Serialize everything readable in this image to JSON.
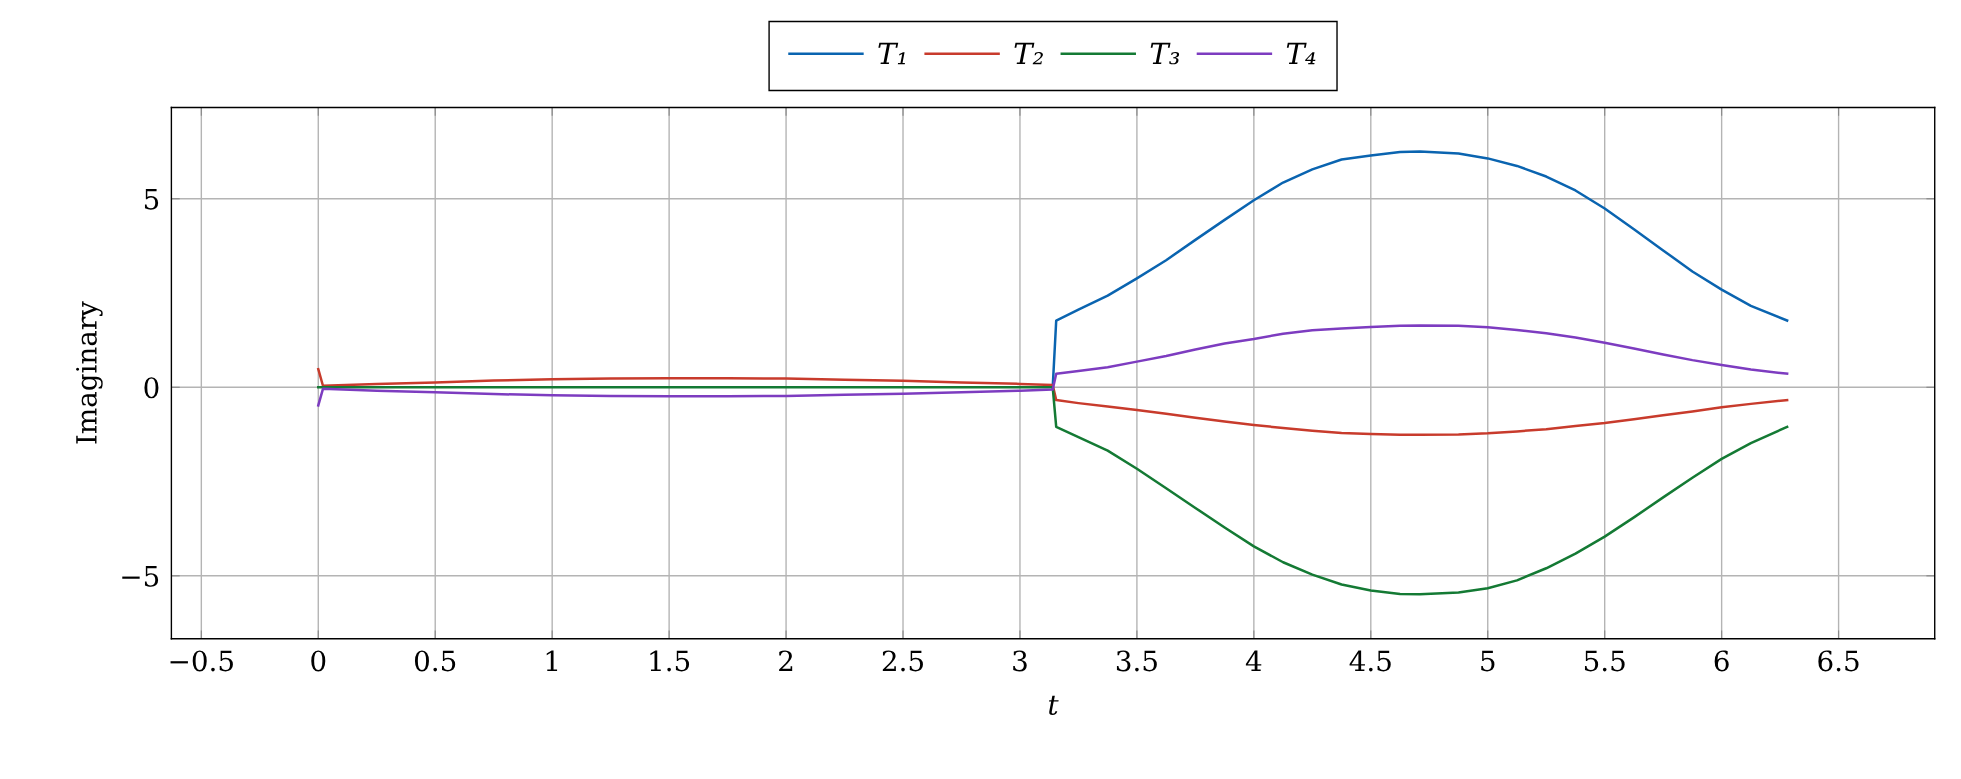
{
  "chart_data": {
    "type": "line",
    "xlabel": "t",
    "ylabel": "Imaginary",
    "xlim": [
      -0.628,
      6.911
    ],
    "ylim": [
      -6.67,
      7.42
    ],
    "xticks": [
      {
        "value": -0.5,
        "label": "−0.5"
      },
      0,
      0.5,
      1,
      1.5,
      2,
      2.5,
      3,
      3.5,
      4,
      4.5,
      5,
      5.5,
      6,
      6.5
    ],
    "yticks": [
      {
        "value": -5,
        "label": "−5"
      },
      0,
      5
    ],
    "grid": true,
    "legend": "top",
    "series": [
      {
        "name": "T₁",
        "color": "#0a64b0",
        "x": [
          3.14,
          3.155,
          3.25,
          3.375,
          3.5,
          3.625,
          3.75,
          3.875,
          4,
          4.125,
          4.25,
          4.375,
          4.5,
          4.625,
          4.71,
          4.875,
          5,
          5.125,
          5.25,
          5.375,
          5.5,
          5.625,
          5.75,
          5.875,
          6,
          6.125,
          6.28
        ],
        "values": [
          0,
          1.77,
          2.06,
          2.43,
          2.89,
          3.37,
          3.91,
          4.44,
          4.96,
          5.43,
          5.78,
          6.04,
          6.15,
          6.24,
          6.25,
          6.2,
          6.07,
          5.87,
          5.59,
          5.22,
          4.74,
          4.19,
          3.63,
          3.07,
          2.59,
          2.16,
          1.77
        ]
      },
      {
        "name": "T₂",
        "color": "#c83b2c",
        "x": [
          0,
          0.02,
          0.25,
          0.5,
          0.75,
          1,
          1.25,
          1.5,
          1.75,
          2,
          2.25,
          2.5,
          2.75,
          3,
          3.14,
          3.155,
          3.25,
          3.375,
          3.5,
          3.625,
          3.75,
          3.875,
          4,
          4.125,
          4.25,
          4.375,
          4.5,
          4.625,
          4.71,
          4.875,
          5,
          5.125,
          5.25,
          5.375,
          5.5,
          5.625,
          5.75,
          5.875,
          6,
          6.125,
          6.28
        ],
        "values": [
          0.48,
          0.04,
          0.09,
          0.13,
          0.18,
          0.21,
          0.23,
          0.24,
          0.24,
          0.23,
          0.2,
          0.17,
          0.13,
          0.09,
          0.06,
          -0.34,
          -0.42,
          -0.51,
          -0.6,
          -0.7,
          -0.81,
          -0.91,
          -1,
          -1.08,
          -1.15,
          -1.21,
          -1.24,
          -1.26,
          -1.26,
          -1.25,
          -1.22,
          -1.17,
          -1.11,
          -1.03,
          -0.95,
          -0.85,
          -0.74,
          -0.64,
          -0.53,
          -0.44,
          -0.34
        ]
      },
      {
        "name": "T₃",
        "color": "#147a34",
        "x": [
          0,
          0.02,
          0.25,
          0.5,
          0.75,
          1,
          1.25,
          1.5,
          1.75,
          2,
          2.25,
          2.5,
          2.75,
          3,
          3.14,
          3.155,
          3.25,
          3.375,
          3.5,
          3.625,
          3.75,
          3.875,
          4,
          4.125,
          4.25,
          4.375,
          4.5,
          4.625,
          4.71,
          4.875,
          5,
          5.125,
          5.25,
          5.375,
          5.5,
          5.625,
          5.75,
          5.875,
          6,
          6.125,
          6.28
        ],
        "values": [
          0,
          0,
          0,
          0,
          0,
          0,
          0,
          0,
          0,
          0,
          0,
          0,
          0,
          0,
          0,
          -1.05,
          -1.32,
          -1.68,
          -2.16,
          -2.68,
          -3.2,
          -3.72,
          -4.22,
          -4.64,
          -4.97,
          -5.23,
          -5.39,
          -5.48,
          -5.49,
          -5.44,
          -5.33,
          -5.12,
          -4.8,
          -4.41,
          -3.96,
          -3.45,
          -2.92,
          -2.4,
          -1.9,
          -1.48,
          -1.05
        ]
      },
      {
        "name": "T₄",
        "color": "#7d3cc0",
        "x": [
          0,
          0.02,
          0.25,
          0.5,
          0.75,
          1,
          1.25,
          1.5,
          1.75,
          2,
          2.25,
          2.5,
          2.75,
          3,
          3.14,
          3.155,
          3.25,
          3.375,
          3.5,
          3.625,
          3.75,
          3.875,
          4,
          4.125,
          4.25,
          4.375,
          4.5,
          4.625,
          4.71,
          4.875,
          5,
          5.125,
          5.25,
          5.375,
          5.5,
          5.625,
          5.75,
          5.875,
          6,
          6.125,
          6.28
        ],
        "values": [
          -0.48,
          -0.04,
          -0.09,
          -0.13,
          -0.18,
          -0.21,
          -0.23,
          -0.24,
          -0.24,
          -0.23,
          -0.2,
          -0.17,
          -0.13,
          -0.09,
          -0.06,
          0.36,
          0.43,
          0.53,
          0.68,
          0.83,
          1,
          1.16,
          1.28,
          1.42,
          1.51,
          1.56,
          1.6,
          1.63,
          1.64,
          1.63,
          1.59,
          1.52,
          1.43,
          1.32,
          1.18,
          1.03,
          0.87,
          0.72,
          0.59,
          0.47,
          0.36
        ]
      }
    ]
  }
}
